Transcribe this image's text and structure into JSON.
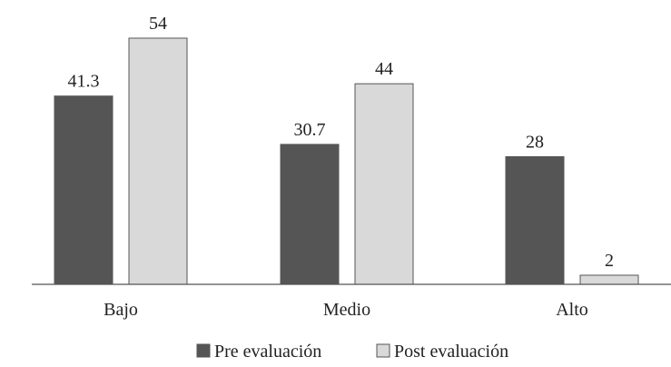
{
  "chart_data": {
    "type": "bar",
    "title": "",
    "xlabel": "",
    "ylabel": "",
    "categories": [
      "Bajo",
      "Medio",
      "Alto"
    ],
    "series": [
      {
        "name": "Pre evaluación",
        "values": [
          41.3,
          30.7,
          28
        ],
        "labels": [
          "41.3",
          "30.7",
          "28"
        ],
        "color": "#555555"
      },
      {
        "name": "Post evaluación",
        "values": [
          54,
          44,
          2
        ],
        "labels": [
          "54",
          "44",
          "2"
        ],
        "color": "#d9d9d9"
      }
    ],
    "ylim": [
      0,
      60
    ],
    "grid": false,
    "legend_position": "bottom"
  }
}
